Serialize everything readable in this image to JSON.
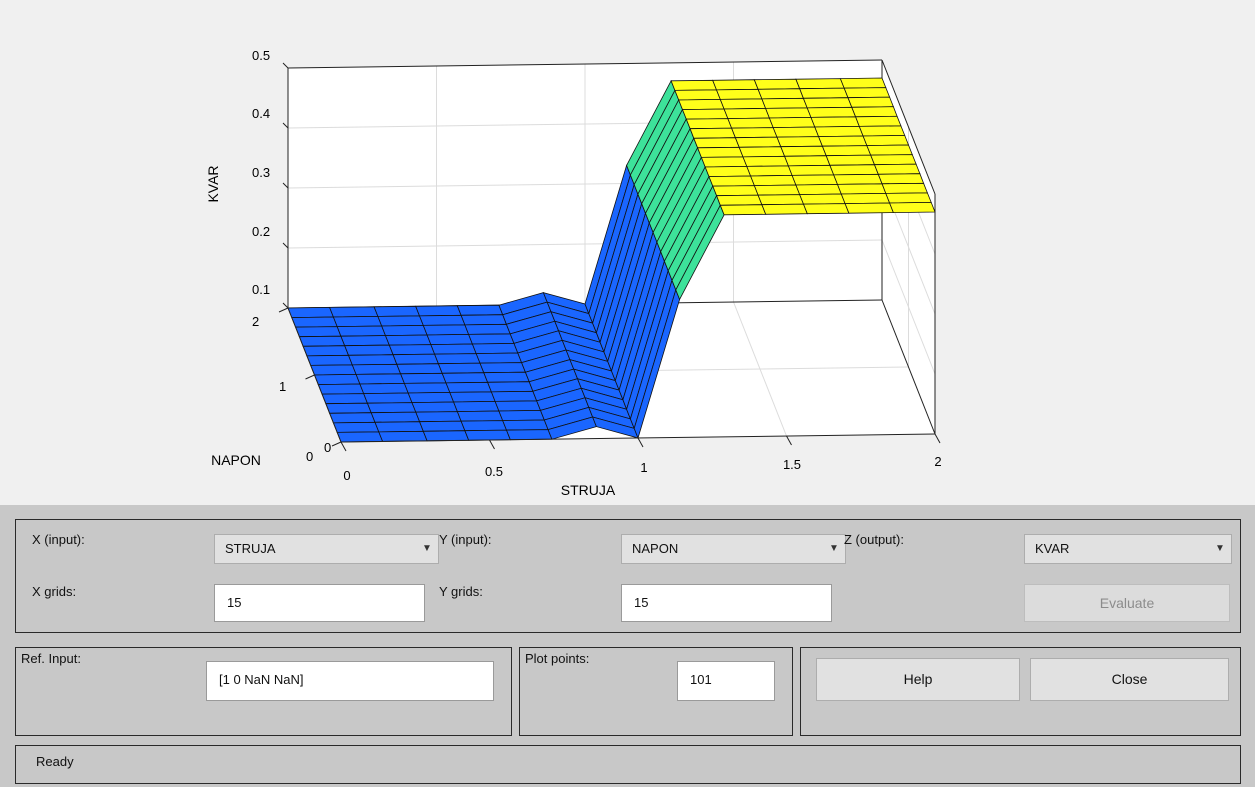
{
  "plot": {
    "zlabel": "KVAR",
    "xlabel": "STRUJA",
    "ylabel": "NAPON",
    "z_ticks": [
      "0.1",
      "0.2",
      "0.3",
      "0.4",
      "0.5"
    ],
    "x_ticks": [
      "0",
      "0.5",
      "1",
      "1.5",
      "2"
    ],
    "y_ticks": [
      "0",
      "1",
      "2"
    ],
    "colors": {
      "low": "#1a66ff",
      "mid": "#3de29a",
      "high": "#ffff1a"
    }
  },
  "chart_data": {
    "type": "surface",
    "xlabel": "STRUJA",
    "ylabel": "NAPON",
    "zlabel": "KVAR",
    "xlim": [
      0,
      2
    ],
    "ylim": [
      0,
      2
    ],
    "zlim": [
      0.1,
      0.5
    ],
    "x": [
      0,
      0.14,
      0.29,
      0.43,
      0.57,
      0.71,
      0.86,
      1.0,
      1.14,
      1.29,
      1.43,
      1.57,
      1.71,
      1.86,
      2.0
    ],
    "z_profile_along_x": [
      0.1,
      0.1,
      0.1,
      0.1,
      0.1,
      0.1,
      0.12,
      0.1,
      0.33,
      0.47,
      0.47,
      0.47,
      0.47,
      0.47,
      0.47
    ]
  },
  "controls": {
    "x_input_label": "X (input):",
    "x_input_value": "STRUJA",
    "y_input_label": "Y (input):",
    "y_input_value": "NAPON",
    "z_output_label": "Z (output):",
    "z_output_value": "KVAR",
    "x_grids_label": "X grids:",
    "x_grids_value": "15",
    "y_grids_label": "Y grids:",
    "y_grids_value": "15",
    "evaluate_label": "Evaluate",
    "ref_input_label": "Ref. Input:",
    "ref_input_value": "[1 0 NaN NaN]",
    "plot_points_label": "Plot points:",
    "plot_points_value": "101",
    "help_label": "Help",
    "close_label": "Close",
    "status_text": "Ready"
  }
}
